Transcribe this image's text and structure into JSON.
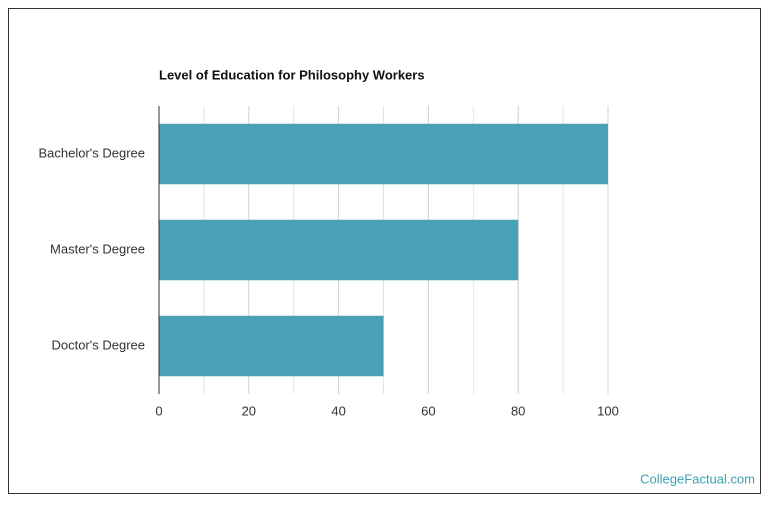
{
  "chart_data": {
    "type": "bar",
    "orientation": "horizontal",
    "title": "Level of Education for Philosophy Workers",
    "categories": [
      "Bachelor's Degree",
      "Master's Degree",
      "Doctor's Degree"
    ],
    "values": [
      100,
      80,
      50
    ],
    "color": "#4aa0b5",
    "xlim": [
      0,
      100
    ],
    "xticks": [
      0,
      20,
      40,
      60,
      80,
      100
    ],
    "minor_gridlines": [
      10,
      30,
      50,
      70,
      90
    ],
    "grid": true,
    "source": "CollegeFactual.com"
  }
}
